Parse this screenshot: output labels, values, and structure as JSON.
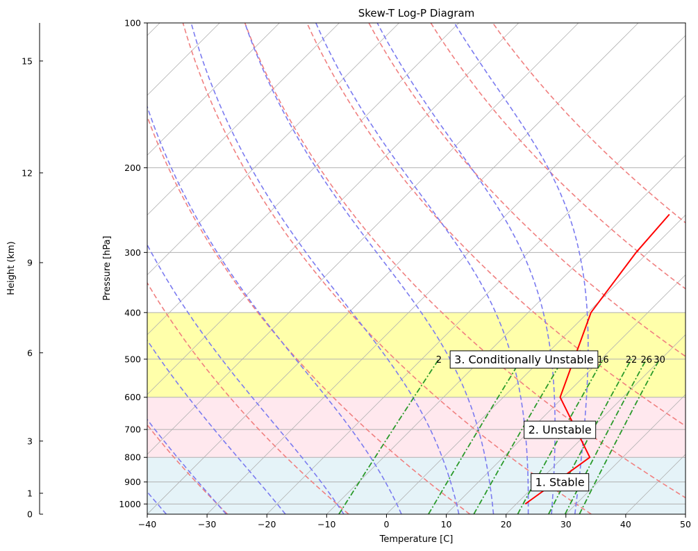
{
  "chart_data": {
    "type": "line",
    "title": "Skew-T Log-P Diagram",
    "xlabel": "Temperature [C]",
    "ylabel": "Pressure [hPa]",
    "height_axis_label": "Height (km)",
    "xlim": [
      -40,
      50
    ],
    "ylim": [
      1050,
      100
    ],
    "y_scale": "log",
    "x_ticks": [
      -40,
      -30,
      -20,
      -10,
      0,
      10,
      20,
      30,
      40,
      50
    ],
    "y_ticks": [
      100,
      200,
      300,
      400,
      500,
      600,
      700,
      800,
      900,
      1000
    ],
    "height_ticks": [
      {
        "km": 0,
        "p": 1050
      },
      {
        "km": 1,
        "p": 950
      },
      {
        "km": 3,
        "p": 740
      },
      {
        "km": 6,
        "p": 485
      },
      {
        "km": 9,
        "p": 315
      },
      {
        "km": 12,
        "p": 205
      },
      {
        "km": 15,
        "p": 120
      }
    ],
    "grid": true,
    "skew_degrees": 45,
    "colors": {
      "temperature_profile": "#ff0000",
      "dry_adiabats": "#f08080",
      "moist_adiabats": "#7b7bf0",
      "mixing_ratio": "#2a9a2a",
      "isotherms": "#b0b0b0",
      "stable_layer": "#e5f3f8",
      "unstable_layer": "#ffe8ee",
      "conditionally_unstable_layer": "#ffffaa"
    },
    "temperature_profile": {
      "pressure": [
        1000,
        800,
        600,
        400,
        300,
        250
      ],
      "temperature": [
        21.5,
        24.5,
        9.5,
        0.5,
        -2,
        -2.8
      ]
    },
    "layers": [
      {
        "label": "1. Stable",
        "p_bottom": 1050,
        "p_top": 800
      },
      {
        "label": "2. Unstable",
        "p_bottom": 800,
        "p_top": 600
      },
      {
        "label": "3. Conditionally Unstable",
        "p_bottom": 600,
        "p_top": 400
      }
    ],
    "dry_adiabats_theta_c": [
      -30,
      -10,
      10,
      30,
      50,
      70,
      90,
      110,
      130
    ],
    "moist_adiabats_t1000": [
      -40,
      -30,
      -20,
      -10,
      0,
      10,
      16,
      22,
      26,
      30
    ],
    "mixing_ratio_lines": [
      {
        "w": 2,
        "labeled": true
      },
      {
        "w": 6,
        "labeled": false
      },
      {
        "w": 10,
        "labeled": false
      },
      {
        "w": 16,
        "labeled": true
      },
      {
        "w": 22,
        "labeled": true
      },
      {
        "w": 26,
        "labeled": true
      },
      {
        "w": 30,
        "labeled": true
      }
    ]
  }
}
